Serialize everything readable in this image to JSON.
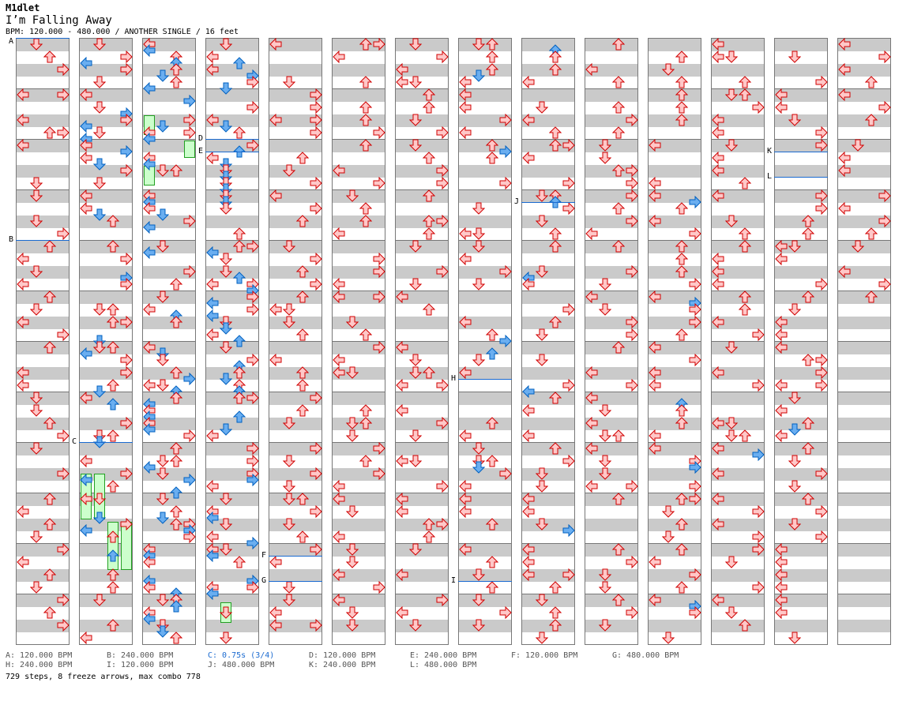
{
  "header": {
    "artist": "M1dlet",
    "title": "I’m Falling Away",
    "info": "BPM: 120.000 - 480.000 / ANOTHER SINGLE / 16 feet"
  },
  "chart": {
    "columns": 14,
    "measures_per_column": 12,
    "last_measure_with_steps": 161,
    "colors": {
      "step": "#d00000",
      "step_fill": "#ffc8c8",
      "sixteenth": "#0060c0",
      "sixteenth_fill": "#6aaef0",
      "freeze": "#22a022",
      "marker": "#1a6ad0"
    },
    "markers": [
      {
        "label": "A",
        "measure": 0
      },
      {
        "label": "B",
        "measure": 4
      },
      {
        "label": "C",
        "measure": 20
      },
      {
        "label": "D",
        "measure": 38
      },
      {
        "label": "E",
        "measure": 38.25
      },
      {
        "label": "F",
        "measure": 58.25
      },
      {
        "label": "G",
        "measure": 58.75
      },
      {
        "label": "H",
        "measure": 90.75
      },
      {
        "label": "I",
        "measure": 94.75
      },
      {
        "label": "J",
        "measure": 99.25
      },
      {
        "label": "K",
        "measure": 146.25
      },
      {
        "label": "L",
        "measure": 146.75
      }
    ],
    "freezes": [
      {
        "lane": "left",
        "measure": 25.4,
        "length": 0.4
      },
      {
        "lane": "right",
        "measure": 25.9,
        "length": 0.35
      },
      {
        "lane": "left",
        "measure": 26.4,
        "length": 0.4
      },
      {
        "lane": "left",
        "measure": 20.5,
        "length": 0.9
      },
      {
        "lane": "down",
        "measure": 20.5,
        "length": 0.9
      },
      {
        "lane": "up",
        "measure": 21.45,
        "length": 0.95
      },
      {
        "lane": "right",
        "measure": 21.45,
        "length": 0.95
      },
      {
        "lane": "down",
        "measure": 47.05,
        "length": 0.4
      }
    ],
    "sixteenth_density": [
      0,
      0.35,
      0.6,
      0.6,
      0.05,
      0,
      0,
      0.15,
      0.1,
      0,
      0.1,
      0.05,
      0.05,
      0
    ]
  },
  "footer": {
    "row1": [
      "A: 120.000 BPM",
      "B: 240.000 BPM",
      "C: 0.75s (3/4)",
      "D: 120.000 BPM",
      "E: 240.000 BPM",
      "F: 120.000 BPM",
      "G: 480.000 BPM"
    ],
    "row2": [
      "H: 240.000 BPM",
      "I: 120.000 BPM",
      "J: 480.000 BPM",
      "K: 240.000 BPM",
      "L: 480.000 BPM"
    ],
    "summary": "729 steps, 8 freeze arrows, max combo 778"
  }
}
